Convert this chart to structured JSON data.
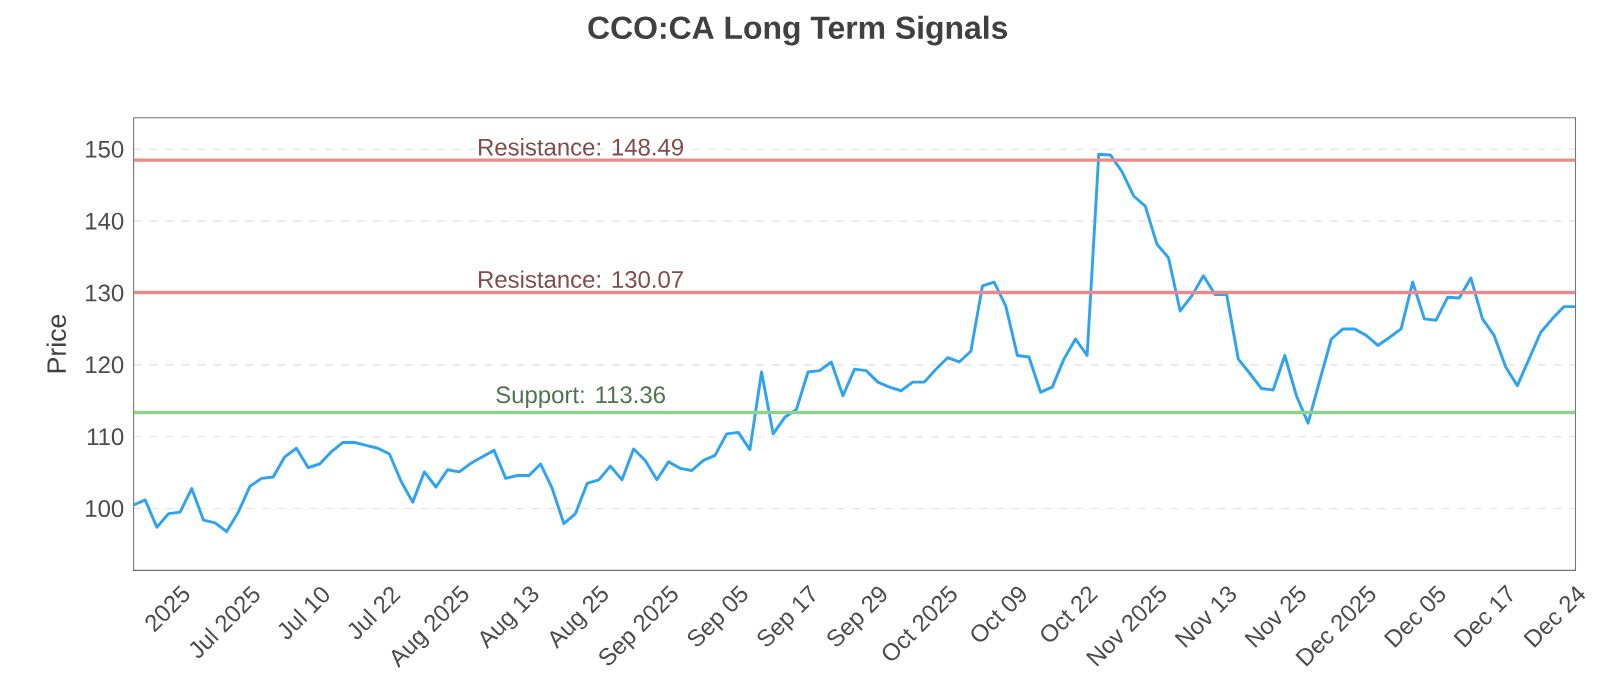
{
  "chart_data": {
    "type": "line",
    "title": "CCO:CA Long Term Signals",
    "ylabel": "Price",
    "categories": [
      null,
      null,
      null,
      null,
      "2025",
      null,
      null,
      null,
      null,
      null,
      "Jul 2025",
      null,
      null,
      null,
      null,
      null,
      "Jul 10",
      null,
      null,
      null,
      null,
      null,
      "Jul 22",
      null,
      null,
      null,
      null,
      null,
      "Aug 2025",
      null,
      null,
      null,
      null,
      null,
      "Aug 13",
      null,
      null,
      null,
      null,
      null,
      "Aug 25",
      null,
      null,
      null,
      null,
      null,
      "Sep 2025",
      null,
      null,
      null,
      null,
      null,
      "Sep 05",
      null,
      null,
      null,
      null,
      null,
      "Sep 17",
      null,
      null,
      null,
      null,
      null,
      "Sep 29",
      null,
      null,
      null,
      null,
      null,
      "Oct 2025",
      null,
      null,
      null,
      null,
      null,
      "Oct 09",
      null,
      null,
      null,
      null,
      null,
      "Oct 22",
      null,
      null,
      null,
      null,
      null,
      "Nov 2025",
      null,
      null,
      null,
      null,
      null,
      "Nov 13",
      null,
      null,
      null,
      null,
      null,
      "Nov 25",
      null,
      null,
      null,
      null,
      null,
      "Dec 2025",
      null,
      null,
      null,
      null,
      null,
      "Dec 05",
      null,
      null,
      null,
      null,
      null,
      "Dec 17",
      null,
      null,
      null,
      null,
      null,
      "Dec 24"
    ],
    "series": [
      {
        "color": "#2ea3f2",
        "values": [
          100.5,
          101.2,
          97.4,
          99.3,
          99.5,
          102.8,
          98.4,
          98,
          96.8,
          99.5,
          103.1,
          104.2,
          104.4,
          107.2,
          108.4,
          105.7,
          106.2,
          107.9,
          109.2,
          109.2,
          108.8,
          108.4,
          107.6,
          103.8,
          100.9,
          105.1,
          103,
          105.4,
          105.1,
          106.3,
          107.2,
          108.1,
          104.2,
          104.6,
          104.6,
          106.2,
          102.8,
          97.9,
          99.3,
          103.5,
          104,
          105.9,
          104,
          108.3,
          106.7,
          104,
          106.5,
          105.6,
          105.3,
          106.7,
          107.4,
          110.4,
          110.6,
          108.2,
          119,
          110.4,
          112.7,
          113.8,
          119,
          119.2,
          120.4,
          115.7,
          119.4,
          119.2,
          117.6,
          116.9,
          116.4,
          117.6,
          117.6,
          119.4,
          121,
          120.4,
          121.9,
          131,
          131.5,
          128.2,
          121.3,
          121.1,
          116.2,
          116.9,
          120.8,
          123.6,
          121.3,
          149.3,
          149.2,
          146.9,
          143.5,
          142.1,
          136.8,
          134.9,
          127.5,
          129.6,
          132.4,
          129.8,
          129.8,
          120.8,
          118.8,
          116.7,
          116.5,
          121.3,
          115.7,
          111.9,
          117.8,
          123.6,
          125,
          125,
          124.1,
          122.7,
          123.8,
          125,
          131.5,
          126.4,
          126.2,
          129.4,
          129.3,
          132.1,
          126.4,
          124.1,
          119.7,
          117.1,
          120.8,
          124.5,
          126.4,
          128.1,
          128.1
        ]
      }
    ],
    "ylim": [
      91.4,
      154.4
    ],
    "yticks": [
      100,
      110,
      120,
      130,
      140,
      150
    ],
    "grid": "y",
    "marker": "none",
    "line_style": "solid",
    "ref_lines": [
      {
        "axis": "y",
        "value": 148.49,
        "label": "Resistance: 148.49",
        "color": "#e88a8a"
      },
      {
        "axis": "y",
        "value": 130.07,
        "label": "Resistance: 130.07",
        "color": "#e88a8a"
      },
      {
        "axis": "y",
        "value": 113.36,
        "label": "Support: 113.36",
        "color": "#8fd18f"
      }
    ]
  }
}
